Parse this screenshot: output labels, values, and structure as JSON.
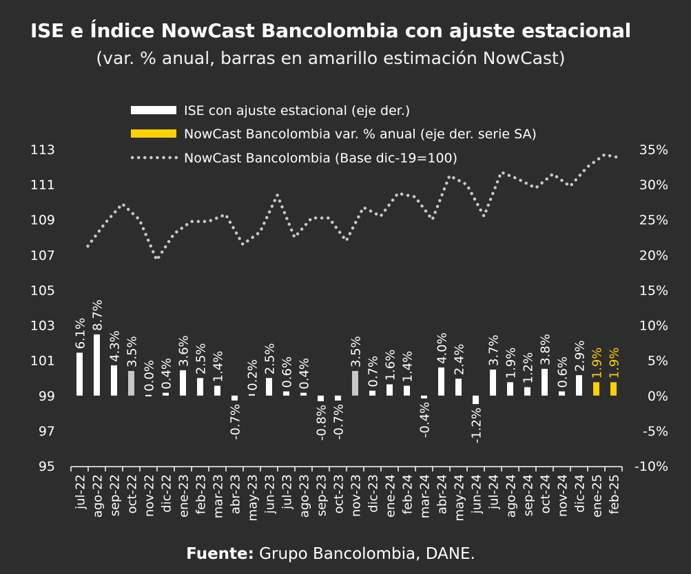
{
  "title": "ISE e Índice NowCast Bancolombia con ajuste estacional",
  "subtitle": "(var. % anual, barras en amarillo estimación NowCast)",
  "source": {
    "label": "Fuente:",
    "text": " Grupo Bancolombia, DANE."
  },
  "colors": {
    "background": "#2d2d2d",
    "ise_bar": "#ffffff",
    "highlight_bar": "#c8c8c8",
    "nowcast_bar": "#ffd100",
    "index_line": "#c8c8c8"
  },
  "chart_data": {
    "type": "bar",
    "legend_position": "top-center",
    "grid": false,
    "categories": [
      "jul-22",
      "ago-22",
      "sep-22",
      "oct-22",
      "nov-22",
      "dic-22",
      "ene-23",
      "feb-23",
      "mar-23",
      "abr-23",
      "may-23",
      "jun-23",
      "jul-23",
      "ago-23",
      "sep-23",
      "oct-23",
      "nov-23",
      "dic-23",
      "ene-24",
      "feb-24",
      "mar-24",
      "abr-24",
      "may-24",
      "jun-24",
      "jul-24",
      "ago-24",
      "sep-24",
      "oct-24",
      "nov-24",
      "dic-24",
      "ene-25",
      "feb-25"
    ],
    "left_axis": {
      "ylim": [
        95,
        113
      ],
      "ticks": [
        "95",
        "97",
        "99",
        "101",
        "103",
        "105",
        "107",
        "109",
        "111",
        "113"
      ]
    },
    "right_axis": {
      "ylim": [
        -10,
        35
      ],
      "ticks": [
        "-10%",
        "-5%",
        "0%",
        "5%",
        "10%",
        "15%",
        "20%",
        "25%",
        "30%",
        "35%"
      ]
    },
    "series": [
      {
        "name": "ISE con ajuste estacional  (eje der.)",
        "type": "bar",
        "axis": "right",
        "values": [
          6.1,
          8.7,
          4.3,
          3.5,
          0.0,
          0.4,
          3.6,
          2.5,
          1.4,
          -0.7,
          0.2,
          2.5,
          0.6,
          0.4,
          -0.8,
          -0.7,
          3.5,
          0.7,
          1.6,
          1.4,
          -0.4,
          4.0,
          2.4,
          -1.2,
          3.7,
          1.9,
          1.2,
          3.8,
          0.6,
          2.9,
          null,
          null
        ],
        "labels": [
          "6.1%",
          "8.7%",
          "4.3%",
          "3.5%",
          "0.0%",
          "0.4%",
          "3.6%",
          "2.5%",
          "1.4%",
          "-0.7%",
          "0.2%",
          "2.5%",
          "0.6%",
          "0.4%",
          "-0.8%",
          "-0.7%",
          "3.5%",
          "0.7%",
          "1.6%",
          "1.4%",
          "-0.4%",
          "4.0%",
          "2.4%",
          "-1.2%",
          "3.7%",
          "1.9%",
          "1.2%",
          "3.8%",
          "0.6%",
          "2.9%",
          null,
          null
        ]
      },
      {
        "name": "NowCast Bancolombia var. % anual (eje der. serie SA)",
        "type": "bar",
        "axis": "right",
        "values": [
          null,
          null,
          null,
          null,
          null,
          null,
          null,
          null,
          null,
          null,
          null,
          null,
          null,
          null,
          null,
          null,
          null,
          null,
          null,
          null,
          null,
          null,
          null,
          null,
          null,
          null,
          null,
          null,
          null,
          null,
          1.9,
          1.9
        ],
        "labels": [
          null,
          null,
          null,
          null,
          null,
          null,
          null,
          null,
          null,
          null,
          null,
          null,
          null,
          null,
          null,
          null,
          null,
          null,
          null,
          null,
          null,
          null,
          null,
          null,
          null,
          null,
          null,
          null,
          null,
          null,
          "1.9%",
          "1.9%"
        ]
      },
      {
        "name": "NowCast Bancolombia (Base dic-19=100)",
        "type": "line",
        "style": "dotted",
        "axis": "left",
        "values": [
          107.5,
          108.8,
          109.9,
          109.0,
          106.7,
          108.2,
          108.9,
          108.9,
          109.3,
          107.6,
          108.3,
          110.4,
          108.0,
          109.1,
          109.1,
          107.8,
          109.7,
          109.2,
          110.5,
          110.3,
          109.0,
          111.5,
          111.0,
          109.2,
          111.7,
          111.3,
          110.8,
          111.6,
          110.9,
          112.0,
          112.7,
          112.5
        ]
      }
    ]
  }
}
